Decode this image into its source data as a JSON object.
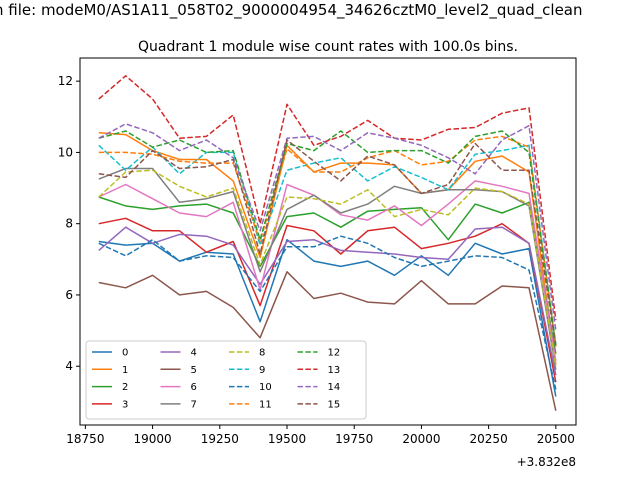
{
  "chart_data": {
    "type": "line",
    "suptitle": "n file: modeM0/AS1A11_058T02_9000004954_34626cztM0_level2_quad_clean",
    "title": "Quadrant 1 module wise count rates with 100.0s bins.",
    "xlabel": "",
    "ylabel": "",
    "x_offset_label": "+3.832e8",
    "x": [
      18800,
      18900,
      19000,
      19100,
      19200,
      19300,
      19400,
      19500,
      19600,
      19700,
      19800,
      19900,
      20000,
      20100,
      20200,
      20300,
      20400,
      20500
    ],
    "xlim": [
      18730,
      20575
    ],
    "ylim": [
      2.35,
      12.65
    ],
    "xticks": [
      18750,
      19000,
      19250,
      19500,
      19750,
      20000,
      20250,
      20500
    ],
    "yticks": [
      4,
      6,
      8,
      10,
      12
    ],
    "grid": false,
    "legend": {
      "placement": "lower-left",
      "ncol": 4
    },
    "series": [
      {
        "name": "0",
        "color": "#1f77b4",
        "dash": "solid",
        "values": [
          7.5,
          7.4,
          7.45,
          6.95,
          7.2,
          7.15,
          5.25,
          7.55,
          6.95,
          6.8,
          6.95,
          6.55,
          7.1,
          6.55,
          7.45,
          7.15,
          7.3,
          3.15
        ]
      },
      {
        "name": "1",
        "color": "#ff7f0e",
        "dash": "solid",
        "values": [
          10.55,
          10.5,
          10.05,
          9.8,
          9.8,
          9.2,
          7.05,
          10.2,
          9.45,
          9.7,
          9.7,
          9.65,
          8.85,
          8.95,
          9.75,
          9.9,
          9.45,
          4.05
        ]
      },
      {
        "name": "2",
        "color": "#2ca02c",
        "dash": "solid",
        "values": [
          8.75,
          8.5,
          8.4,
          8.5,
          8.55,
          8.3,
          6.8,
          8.2,
          8.3,
          7.9,
          8.35,
          8.4,
          8.45,
          7.55,
          8.55,
          8.3,
          8.6,
          4.35
        ]
      },
      {
        "name": "3",
        "color": "#d62728",
        "dash": "solid",
        "values": [
          8.0,
          8.15,
          7.8,
          7.8,
          7.2,
          7.5,
          5.7,
          7.95,
          7.8,
          7.15,
          7.8,
          7.9,
          7.3,
          7.45,
          7.65,
          8.0,
          7.45,
          3.55
        ]
      },
      {
        "name": "4",
        "color": "#9467bd",
        "dash": "solid",
        "values": [
          7.25,
          7.9,
          7.45,
          7.7,
          7.65,
          7.4,
          6.3,
          7.5,
          7.55,
          7.25,
          7.2,
          7.15,
          7.05,
          7.0,
          7.85,
          7.9,
          7.45,
          3.75
        ]
      },
      {
        "name": "5",
        "color": "#8c564b",
        "dash": "solid",
        "values": [
          6.35,
          6.2,
          6.55,
          6.0,
          6.1,
          5.65,
          4.8,
          6.65,
          5.9,
          6.05,
          5.8,
          5.75,
          6.4,
          5.75,
          5.75,
          6.25,
          6.2,
          2.75
        ]
      },
      {
        "name": "6",
        "color": "#e377c2",
        "dash": "solid",
        "values": [
          8.75,
          9.1,
          8.7,
          8.3,
          8.2,
          8.6,
          6.15,
          9.1,
          8.8,
          8.25,
          8.1,
          8.5,
          7.95,
          8.55,
          9.2,
          9.05,
          8.85,
          4.15
        ]
      },
      {
        "name": "7",
        "color": "#7f7f7f",
        "dash": "solid",
        "values": [
          9.25,
          9.55,
          9.55,
          8.6,
          8.7,
          8.9,
          6.65,
          8.4,
          8.8,
          8.3,
          8.55,
          9.05,
          8.85,
          8.95,
          8.95,
          8.9,
          8.5,
          3.9
        ]
      },
      {
        "name": "8",
        "color": "#bcbd22",
        "dash": "dashed",
        "values": [
          8.75,
          9.45,
          9.5,
          9.05,
          8.75,
          9.0,
          6.85,
          8.75,
          8.7,
          8.55,
          8.95,
          8.2,
          8.4,
          8.25,
          9.0,
          8.9,
          8.55,
          4.0
        ]
      },
      {
        "name": "9",
        "color": "#17becf",
        "dash": "dashed",
        "values": [
          10.2,
          9.5,
          10.15,
          9.4,
          10.0,
          10.0,
          7.4,
          9.5,
          9.7,
          9.85,
          9.2,
          9.6,
          9.3,
          8.95,
          9.95,
          10.05,
          10.2,
          4.6
        ]
      },
      {
        "name": "10",
        "color": "#1f77b4",
        "dash": "dashed",
        "values": [
          7.45,
          7.1,
          7.55,
          6.95,
          7.1,
          7.05,
          6.1,
          7.35,
          7.35,
          7.65,
          7.45,
          7.05,
          6.8,
          6.95,
          7.1,
          7.05,
          6.7,
          3.35
        ]
      },
      {
        "name": "11",
        "color": "#ff7f0e",
        "dash": "dashed",
        "values": [
          10.0,
          10.0,
          9.95,
          9.75,
          9.7,
          9.7,
          7.5,
          10.1,
          9.45,
          9.45,
          9.85,
          10.05,
          9.65,
          9.75,
          10.35,
          10.45,
          10.15,
          4.55
        ]
      },
      {
        "name": "12",
        "color": "#2ca02c",
        "dash": "dashed",
        "values": [
          10.4,
          10.6,
          10.15,
          10.35,
          10.0,
          10.05,
          7.55,
          10.25,
          10.05,
          10.6,
          10.0,
          10.05,
          10.05,
          9.7,
          10.45,
          10.6,
          10.0,
          4.6
        ]
      },
      {
        "name": "13",
        "color": "#d62728",
        "dash": "dashed",
        "values": [
          11.5,
          12.15,
          11.5,
          10.4,
          10.45,
          11.05,
          8.0,
          11.35,
          10.2,
          10.45,
          10.9,
          10.4,
          10.35,
          10.65,
          10.7,
          11.1,
          11.25,
          5.3
        ]
      },
      {
        "name": "14",
        "color": "#9467bd",
        "dash": "dashed",
        "values": [
          10.4,
          10.8,
          10.55,
          10.05,
          10.35,
          9.85,
          7.8,
          10.4,
          10.45,
          10.05,
          10.55,
          10.4,
          10.2,
          9.85,
          9.4,
          10.35,
          10.75,
          5.0
        ]
      },
      {
        "name": "15",
        "color": "#8c564b",
        "dash": "dashed",
        "values": [
          9.4,
          9.3,
          10.05,
          9.55,
          9.6,
          9.8,
          7.15,
          10.35,
          9.75,
          9.2,
          9.9,
          9.65,
          8.85,
          9.1,
          10.25,
          9.5,
          9.5,
          4.55
        ]
      }
    ]
  }
}
